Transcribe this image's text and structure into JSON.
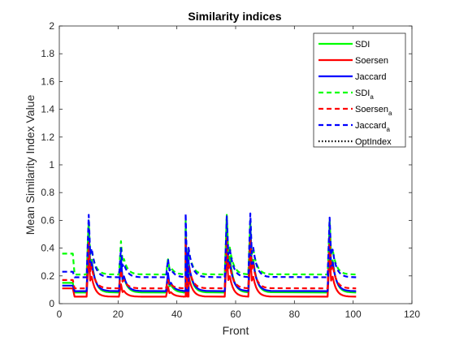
{
  "chart_data": {
    "type": "line",
    "title": "Similarity indices",
    "xlabel": "Front",
    "ylabel": "Mean Similarity Index Value",
    "xlim": [
      0,
      120
    ],
    "ylim": [
      0,
      2
    ],
    "xticks": [
      "0",
      "20",
      "40",
      "60",
      "80",
      "100",
      "120"
    ],
    "yticks": [
      "0",
      "0.2",
      "0.4",
      "0.6",
      "0.8",
      "1",
      "1.2",
      "1.4",
      "1.6",
      "1.8",
      "2"
    ],
    "grid": false,
    "legend_position": "top-right",
    "series": [
      {
        "name": "SDI",
        "subscript": "",
        "color": "#00ff00",
        "style": "solid",
        "baseline": 0.08,
        "start": 0.15,
        "peaks": [
          [
            10,
            0.59
          ],
          [
            21,
            0.32
          ],
          [
            37,
            0.2
          ],
          [
            43,
            0.54
          ],
          [
            57,
            0.64
          ],
          [
            65,
            0.59
          ],
          [
            92,
            0.58
          ]
        ]
      },
      {
        "name": "Soersen",
        "subscript": "",
        "color": "#ff0000",
        "style": "solid",
        "baseline": 0.05,
        "start": 0.11,
        "peaks": [
          [
            10,
            0.36
          ],
          [
            21,
            0.14
          ],
          [
            37,
            0.12
          ],
          [
            43,
            0.38
          ],
          [
            57,
            0.37
          ],
          [
            65,
            0.36
          ],
          [
            92,
            0.36
          ]
        ]
      },
      {
        "name": "Jaccard",
        "subscript": "",
        "color": "#0000ff",
        "style": "solid",
        "baseline": 0.09,
        "start": 0.13,
        "peaks": [
          [
            10,
            0.54
          ],
          [
            21,
            0.32
          ],
          [
            37,
            0.22
          ],
          [
            43,
            0.54
          ],
          [
            57,
            0.54
          ],
          [
            65,
            0.54
          ],
          [
            92,
            0.54
          ]
        ]
      },
      {
        "name": "SDI",
        "subscript": "a",
        "color": "#00ff00",
        "style": "dashed",
        "baseline": 0.21,
        "start": 0.36,
        "peaks": [
          [
            10,
            0.6
          ],
          [
            21,
            0.45
          ],
          [
            37,
            0.32
          ],
          [
            43,
            0.6
          ],
          [
            57,
            0.63
          ],
          [
            65,
            0.6
          ],
          [
            92,
            0.6
          ]
        ]
      },
      {
        "name": "Soersen",
        "subscript": "a",
        "color": "#ff0000",
        "style": "dashed",
        "baseline": 0.11,
        "start": 0.17,
        "peaks": [
          [
            10,
            0.44
          ],
          [
            21,
            0.24
          ],
          [
            37,
            0.17
          ],
          [
            43,
            0.47
          ],
          [
            57,
            0.47
          ],
          [
            65,
            0.47
          ],
          [
            92,
            0.47
          ]
        ]
      },
      {
        "name": "Jaccard",
        "subscript": "a",
        "color": "#0000ff",
        "style": "dashed",
        "baseline": 0.19,
        "start": 0.23,
        "peaks": [
          [
            10,
            0.64
          ],
          [
            21,
            0.4
          ],
          [
            37,
            0.32
          ],
          [
            43,
            0.65
          ],
          [
            57,
            0.63
          ],
          [
            65,
            0.65
          ],
          [
            92,
            0.62
          ]
        ]
      },
      {
        "name": "OptIndex",
        "subscript": "",
        "color": "#000000",
        "style": "dotted",
        "baseline": null,
        "start": null,
        "peaks": []
      }
    ]
  }
}
